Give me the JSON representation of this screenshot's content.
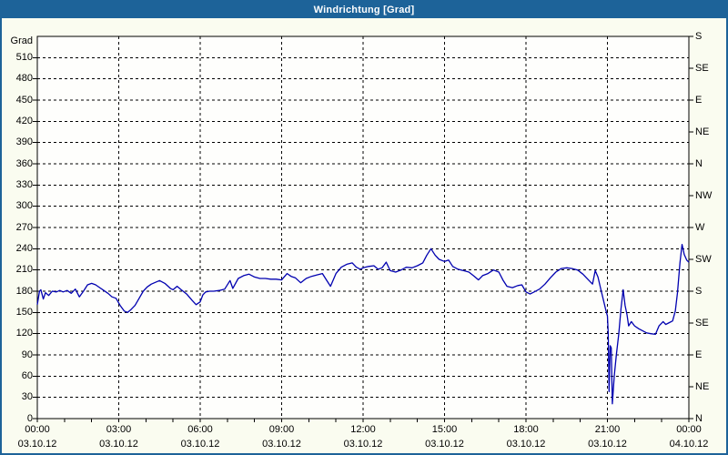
{
  "window": {
    "title": "Windrichtung [Grad]"
  },
  "colors": {
    "titlebar_bg": "#1d6399",
    "frame_border": "#1d6399",
    "background": "#fafcf0",
    "plot_bg": "#fefefc",
    "grid": "#000000",
    "axis": "#000000",
    "line": "#0000b0",
    "title_text": "#ffffff"
  },
  "chart_data": {
    "type": "line",
    "title": "Windrichtung [Grad]",
    "ylabel_left": "Grad",
    "ylim": [
      0,
      540
    ],
    "xlim_hours": [
      0,
      24
    ],
    "grid": "dashed",
    "legend": "none",
    "y_ticks_left": [
      0,
      30,
      60,
      90,
      120,
      150,
      180,
      210,
      240,
      270,
      300,
      330,
      360,
      390,
      420,
      450,
      480,
      510
    ],
    "y_ticks_right": [
      {
        "deg": 0,
        "label": "N"
      },
      {
        "deg": 45,
        "label": "NE"
      },
      {
        "deg": 90,
        "label": "E"
      },
      {
        "deg": 135,
        "label": "SE"
      },
      {
        "deg": 180,
        "label": "S"
      },
      {
        "deg": 225,
        "label": "SW"
      },
      {
        "deg": 270,
        "label": "W"
      },
      {
        "deg": 315,
        "label": "NW"
      },
      {
        "deg": 360,
        "label": "N"
      },
      {
        "deg": 405,
        "label": "NE"
      },
      {
        "deg": 450,
        "label": "E"
      },
      {
        "deg": 495,
        "label": "SE"
      },
      {
        "deg": 540,
        "label": "S"
      }
    ],
    "x_ticks": [
      {
        "hour": 0,
        "time": "00:00",
        "date": "03.10.12"
      },
      {
        "hour": 3,
        "time": "03:00",
        "date": "03.10.12"
      },
      {
        "hour": 6,
        "time": "06:00",
        "date": "03.10.12"
      },
      {
        "hour": 9,
        "time": "09:00",
        "date": "03.10.12"
      },
      {
        "hour": 12,
        "time": "12:00",
        "date": "03.10.12"
      },
      {
        "hour": 15,
        "time": "15:00",
        "date": "03.10.12"
      },
      {
        "hour": 18,
        "time": "18:00",
        "date": "03.10.12"
      },
      {
        "hour": 21,
        "time": "21:00",
        "date": "03.10.12"
      },
      {
        "hour": 24,
        "time": "00:00",
        "date": "04.10.12"
      }
    ],
    "minor_x_tick_every_hours": 1,
    "series": [
      {
        "name": "Windrichtung",
        "unit": "Grad",
        "color": "#0000b0",
        "points": [
          [
            0.0,
            161
          ],
          [
            0.08,
            180
          ],
          [
            0.13,
            182
          ],
          [
            0.22,
            169
          ],
          [
            0.3,
            178
          ],
          [
            0.42,
            174
          ],
          [
            0.55,
            180
          ],
          [
            0.7,
            179
          ],
          [
            0.83,
            181
          ],
          [
            0.95,
            179
          ],
          [
            1.1,
            181
          ],
          [
            1.25,
            177
          ],
          [
            1.4,
            183
          ],
          [
            1.55,
            172
          ],
          [
            1.7,
            180
          ],
          [
            1.85,
            189
          ],
          [
            2.0,
            191
          ],
          [
            2.15,
            189
          ],
          [
            2.3,
            185
          ],
          [
            2.45,
            181
          ],
          [
            2.6,
            177
          ],
          [
            2.75,
            172
          ],
          [
            2.9,
            170
          ],
          [
            3.05,
            160
          ],
          [
            3.2,
            152
          ],
          [
            3.33,
            150
          ],
          [
            3.45,
            154
          ],
          [
            3.6,
            160
          ],
          [
            3.75,
            170
          ],
          [
            3.9,
            180
          ],
          [
            4.05,
            186
          ],
          [
            4.2,
            190
          ],
          [
            4.5,
            195
          ],
          [
            4.7,
            191
          ],
          [
            4.9,
            184
          ],
          [
            5.0,
            182
          ],
          [
            5.15,
            187
          ],
          [
            5.3,
            182
          ],
          [
            5.5,
            176
          ],
          [
            5.7,
            167
          ],
          [
            5.85,
            161
          ],
          [
            6.0,
            165
          ],
          [
            6.1,
            175
          ],
          [
            6.2,
            179
          ],
          [
            6.35,
            180
          ],
          [
            6.5,
            180
          ],
          [
            6.7,
            181
          ],
          [
            6.9,
            183
          ],
          [
            7.05,
            192
          ],
          [
            7.1,
            195
          ],
          [
            7.2,
            184
          ],
          [
            7.4,
            198
          ],
          [
            7.6,
            202
          ],
          [
            7.8,
            204
          ],
          [
            8.0,
            200
          ],
          [
            8.2,
            198
          ],
          [
            8.4,
            198
          ],
          [
            8.6,
            197
          ],
          [
            8.8,
            197
          ],
          [
            9.0,
            196
          ],
          [
            9.2,
            205
          ],
          [
            9.35,
            201
          ],
          [
            9.5,
            199
          ],
          [
            9.7,
            192
          ],
          [
            9.9,
            198
          ],
          [
            10.1,
            201
          ],
          [
            10.3,
            203
          ],
          [
            10.5,
            205
          ],
          [
            10.65,
            196
          ],
          [
            10.8,
            187
          ],
          [
            11.0,
            205
          ],
          [
            11.2,
            214
          ],
          [
            11.4,
            218
          ],
          [
            11.6,
            220
          ],
          [
            11.75,
            214
          ],
          [
            11.9,
            211
          ],
          [
            12.0,
            213
          ],
          [
            12.2,
            215
          ],
          [
            12.4,
            216
          ],
          [
            12.55,
            211
          ],
          [
            12.7,
            213
          ],
          [
            12.85,
            221
          ],
          [
            13.0,
            209
          ],
          [
            13.2,
            207
          ],
          [
            13.4,
            210
          ],
          [
            13.6,
            214
          ],
          [
            13.8,
            213
          ],
          [
            14.0,
            216
          ],
          [
            14.2,
            220
          ],
          [
            14.35,
            231
          ],
          [
            14.5,
            240
          ],
          [
            14.65,
            231
          ],
          [
            14.8,
            225
          ],
          [
            15.0,
            222
          ],
          [
            15.15,
            224
          ],
          [
            15.3,
            215
          ],
          [
            15.5,
            211
          ],
          [
            15.7,
            209
          ],
          [
            15.9,
            207
          ],
          [
            16.1,
            201
          ],
          [
            16.25,
            196
          ],
          [
            16.4,
            202
          ],
          [
            16.6,
            205
          ],
          [
            16.8,
            210
          ],
          [
            17.0,
            207
          ],
          [
            17.15,
            196
          ],
          [
            17.3,
            187
          ],
          [
            17.5,
            185
          ],
          [
            17.7,
            188
          ],
          [
            17.85,
            189
          ],
          [
            18.0,
            179
          ],
          [
            18.15,
            176
          ],
          [
            18.3,
            179
          ],
          [
            18.5,
            183
          ],
          [
            18.7,
            190
          ],
          [
            18.9,
            199
          ],
          [
            19.1,
            207
          ],
          [
            19.3,
            212
          ],
          [
            19.5,
            213
          ],
          [
            19.7,
            212
          ],
          [
            19.9,
            210
          ],
          [
            20.1,
            204
          ],
          [
            20.3,
            196
          ],
          [
            20.45,
            190
          ],
          [
            20.55,
            209
          ],
          [
            20.65,
            200
          ],
          [
            20.75,
            184
          ],
          [
            20.85,
            168
          ],
          [
            20.93,
            155
          ],
          [
            21.0,
            145
          ],
          [
            21.03,
            120
          ],
          [
            21.06,
            38
          ],
          [
            21.1,
            103
          ],
          [
            21.14,
            100
          ],
          [
            21.18,
            21
          ],
          [
            21.25,
            60
          ],
          [
            21.33,
            90
          ],
          [
            21.42,
            120
          ],
          [
            21.5,
            155
          ],
          [
            21.58,
            182
          ],
          [
            21.65,
            160
          ],
          [
            21.72,
            147
          ],
          [
            21.78,
            131
          ],
          [
            21.88,
            137
          ],
          [
            22.0,
            131
          ],
          [
            22.15,
            127
          ],
          [
            22.3,
            124
          ],
          [
            22.45,
            121
          ],
          [
            22.6,
            120
          ],
          [
            22.77,
            119
          ],
          [
            22.9,
            131
          ],
          [
            23.05,
            137
          ],
          [
            23.15,
            133
          ],
          [
            23.25,
            135
          ],
          [
            23.4,
            138
          ],
          [
            23.5,
            152
          ],
          [
            23.58,
            178
          ],
          [
            23.67,
            220
          ],
          [
            23.75,
            246
          ],
          [
            23.83,
            232
          ],
          [
            23.92,
            224
          ],
          [
            24.0,
            221
          ]
        ]
      }
    ]
  }
}
